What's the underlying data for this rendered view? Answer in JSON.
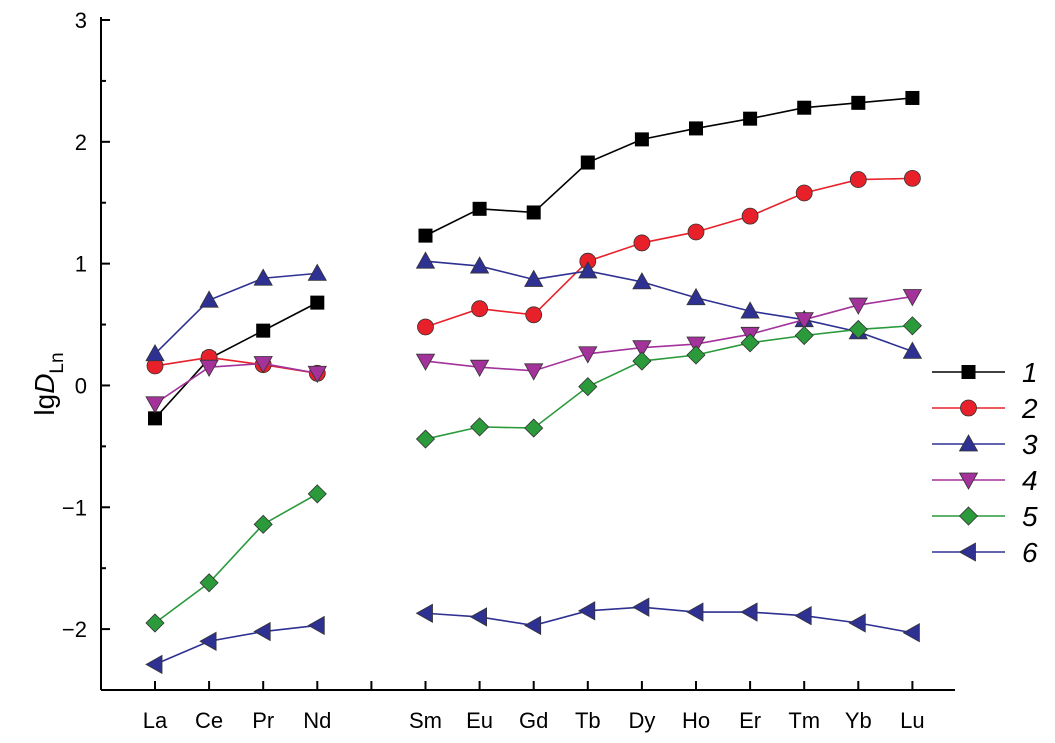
{
  "chart_data": {
    "type": "line",
    "ylabel_main": "lg",
    "ylabel_var": "D",
    "ylabel_sub": "Ln",
    "ylim": [
      -2.5,
      3
    ],
    "yticks": [
      -2,
      -1,
      0,
      1,
      2,
      3
    ],
    "ytick_labels": [
      "−2",
      "−1",
      "0",
      "1",
      "2",
      "3"
    ],
    "grid": false,
    "legend_position": "right",
    "group_gap_after_index": 3,
    "categories": [
      "La",
      "Ce",
      "Pr",
      "Nd",
      "Sm",
      "Eu",
      "Gd",
      "Tb",
      "Dy",
      "Ho",
      "Er",
      "Tm",
      "Yb",
      "Lu"
    ],
    "series": [
      {
        "name": "1",
        "marker": "square",
        "line_color": "#000000",
        "marker_color": "#000000",
        "values": [
          -0.27,
          0.22,
          0.45,
          0.68,
          1.23,
          1.45,
          1.42,
          1.83,
          2.02,
          2.11,
          2.19,
          2.28,
          2.32,
          2.36
        ]
      },
      {
        "name": "2",
        "marker": "circle",
        "line_color": "#e8202a",
        "marker_color": "#e8202a",
        "values": [
          0.16,
          0.23,
          0.17,
          0.1,
          0.48,
          0.63,
          0.58,
          1.02,
          1.17,
          1.26,
          1.39,
          1.58,
          1.69,
          1.7
        ]
      },
      {
        "name": "3",
        "marker": "triangle-up",
        "line_color": "#2e3192",
        "marker_color": "#2e3192",
        "values": [
          0.26,
          0.7,
          0.88,
          0.92,
          1.02,
          0.98,
          0.87,
          0.94,
          0.85,
          0.72,
          0.61,
          0.54,
          0.44,
          0.28
        ]
      },
      {
        "name": "4",
        "marker": "triangle-down",
        "line_color": "#a3329a",
        "marker_color": "#a3329a",
        "values": [
          -0.15,
          0.15,
          0.18,
          0.1,
          0.2,
          0.15,
          0.12,
          0.26,
          0.31,
          0.34,
          0.42,
          0.54,
          0.66,
          0.73
        ]
      },
      {
        "name": "5",
        "marker": "diamond",
        "line_color": "#2a9a3b",
        "marker_color": "#2a9a3b",
        "values": [
          -1.95,
          -1.62,
          -1.14,
          -0.89,
          -0.44,
          -0.34,
          -0.35,
          -0.01,
          0.2,
          0.25,
          0.35,
          0.41,
          0.46,
          0.49
        ]
      },
      {
        "name": "6",
        "marker": "triangle-left",
        "line_color": "#2e3192",
        "marker_color": "#2e3192",
        "values": [
          -2.29,
          -2.1,
          -2.02,
          -1.97,
          -1.87,
          -1.9,
          -1.97,
          -1.85,
          -1.82,
          -1.86,
          -1.86,
          -1.89,
          -1.95,
          -2.03
        ]
      }
    ]
  }
}
